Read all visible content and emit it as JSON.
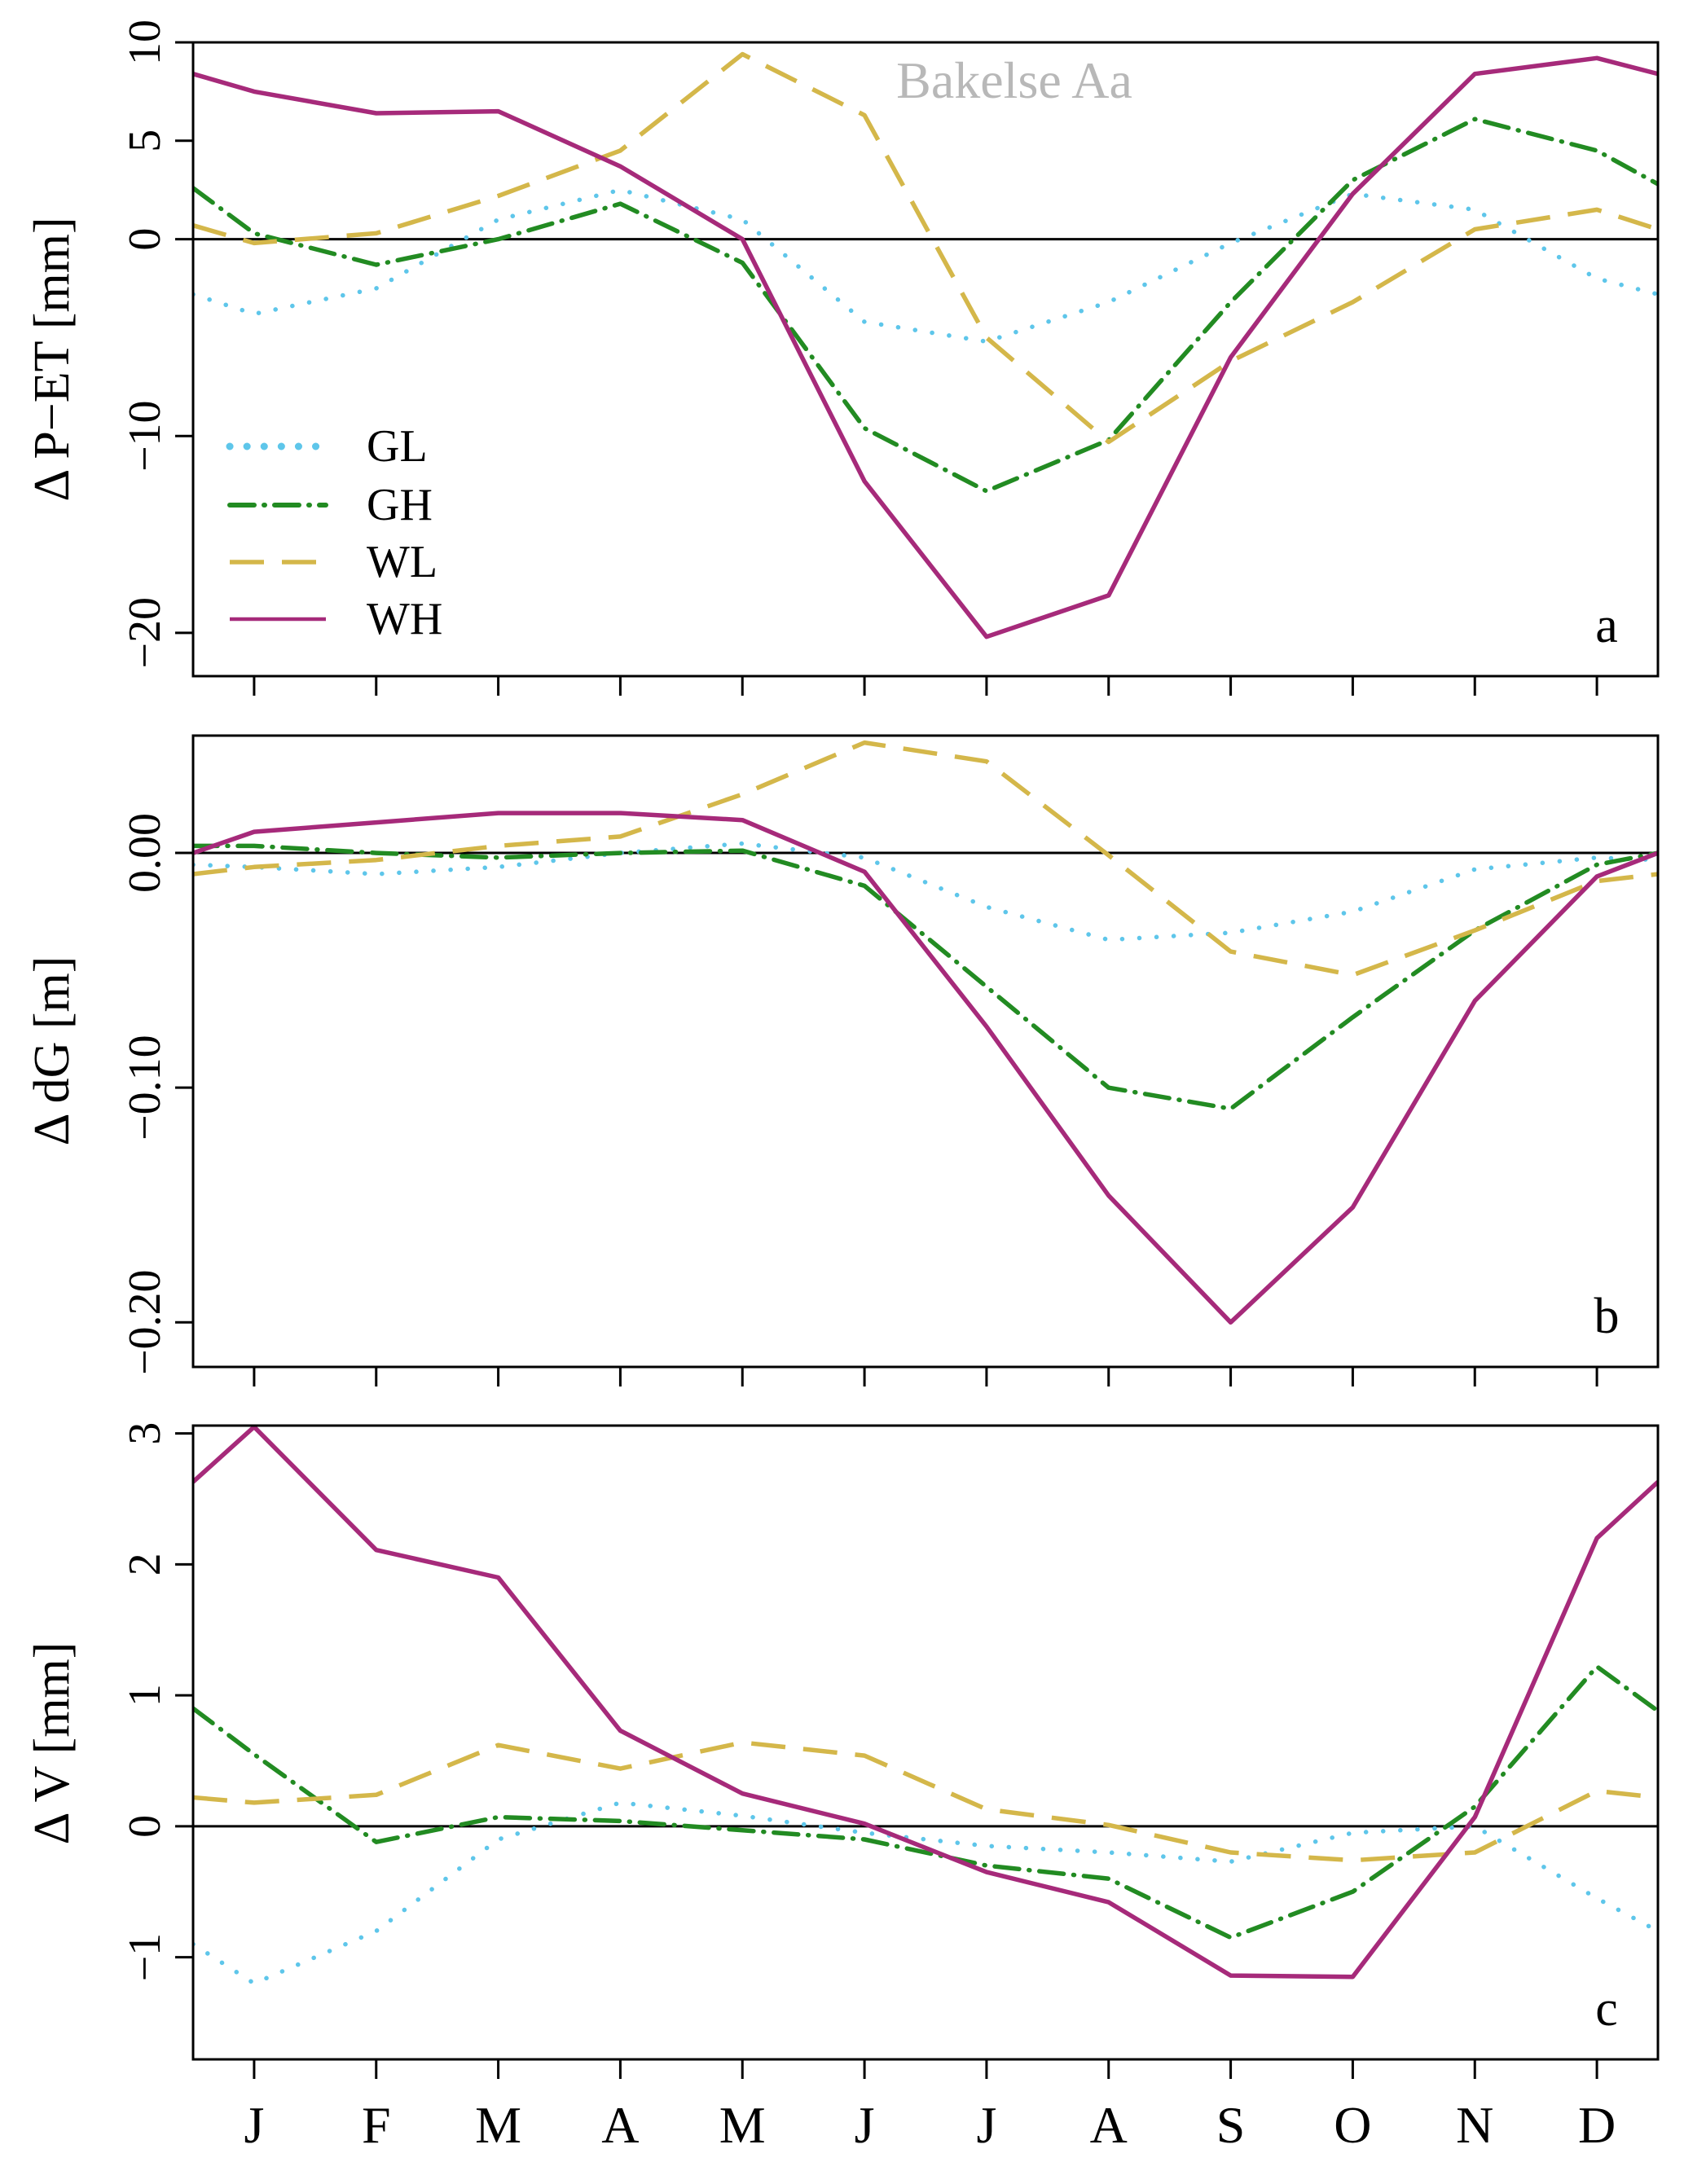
{
  "chart_data": [
    {
      "type": "line",
      "panel": "a",
      "title": "Bakelse Aa",
      "ylabel": "Δ P−ET [mm]",
      "ylim": [
        -22.2,
        10
      ],
      "yticks": [
        10,
        5,
        0,
        -10,
        -20
      ],
      "ytick_labels": [
        "10",
        "5",
        "0",
        "−10",
        "−20"
      ],
      "x": [
        0.5,
        1,
        2,
        3,
        4,
        5,
        6,
        7,
        8,
        9,
        10,
        11,
        12,
        12.5
      ],
      "series": [
        {
          "name": "GL",
          "values": [
            -2.8,
            -3.8,
            -2.5,
            1.0,
            2.5,
            1.0,
            -4.2,
            -5.2,
            -3.2,
            -0.2,
            2.3,
            1.5,
            -2.0,
            -2.8
          ]
        },
        {
          "name": "GH",
          "values": [
            2.6,
            0.3,
            -1.3,
            0.0,
            1.8,
            -1.2,
            -9.6,
            -12.8,
            -10.2,
            -3.2,
            3.0,
            6.1,
            4.5,
            2.8
          ]
        },
        {
          "name": "WL",
          "values": [
            0.7,
            -0.2,
            0.3,
            2.2,
            4.5,
            9.4,
            6.3,
            -5.0,
            -10.3,
            -6.2,
            -3.2,
            0.5,
            1.5,
            0.5
          ]
        },
        {
          "name": "WH",
          "values": [
            8.4,
            7.5,
            6.4,
            6.5,
            3.7,
            0.0,
            -12.3,
            -20.2,
            -18.1,
            -6.0,
            2.3,
            8.4,
            9.2,
            8.4
          ]
        }
      ]
    },
    {
      "type": "line",
      "panel": "b",
      "ylabel": "Δ dG [m]",
      "ylim": [
        -0.219,
        0.05
      ],
      "yticks": [
        0.0,
        -0.1,
        -0.2
      ],
      "ytick_labels": [
        "0.00",
        "−0.10",
        "−0.20"
      ],
      "x": [
        0.5,
        1,
        2,
        3,
        4,
        5,
        6,
        7,
        8,
        9,
        10,
        11,
        12,
        12.5
      ],
      "series": [
        {
          "name": "GL",
          "values": [
            -0.005,
            -0.006,
            -0.009,
            -0.006,
            0.0,
            0.004,
            -0.002,
            -0.023,
            -0.037,
            -0.034,
            -0.025,
            -0.007,
            -0.002,
            -0.003
          ]
        },
        {
          "name": "GH",
          "values": [
            0.003,
            0.003,
            0.0,
            -0.002,
            0.0,
            0.001,
            -0.014,
            -0.057,
            -0.1,
            -0.109,
            -0.07,
            -0.033,
            -0.005,
            0.0
          ]
        },
        {
          "name": "WL",
          "values": [
            -0.009,
            -0.006,
            -0.003,
            0.003,
            0.007,
            0.025,
            0.047,
            0.039,
            -0.001,
            -0.042,
            -0.052,
            -0.033,
            -0.012,
            -0.009
          ]
        },
        {
          "name": "WH",
          "values": [
            0.0,
            0.009,
            0.013,
            0.017,
            0.017,
            0.014,
            -0.008,
            -0.074,
            -0.146,
            -0.2,
            -0.151,
            -0.063,
            -0.01,
            0.0
          ]
        }
      ]
    },
    {
      "type": "line",
      "panel": "c",
      "ylabel": "Δ V [mm]",
      "ylim": [
        -1.78,
        3.06
      ],
      "yticks": [
        3,
        2,
        1,
        0,
        -1
      ],
      "ytick_labels": [
        "3",
        "2",
        "1",
        "0",
        "−1"
      ],
      "x": [
        0.5,
        1,
        2,
        3,
        4,
        5,
        6,
        7,
        8,
        9,
        10,
        11,
        12,
        12.5
      ],
      "series": [
        {
          "name": "GL",
          "values": [
            -0.9,
            -1.2,
            -0.8,
            -0.1,
            0.18,
            0.08,
            -0.05,
            -0.15,
            -0.2,
            -0.27,
            -0.05,
            0.0,
            -0.55,
            -0.8
          ]
        },
        {
          "name": "GH",
          "values": [
            0.9,
            0.55,
            -0.12,
            0.07,
            0.04,
            -0.03,
            -0.1,
            -0.3,
            -0.4,
            -0.85,
            -0.5,
            0.15,
            1.22,
            0.88
          ]
        },
        {
          "name": "WL",
          "values": [
            0.22,
            0.18,
            0.24,
            0.62,
            0.44,
            0.64,
            0.54,
            0.13,
            0.01,
            -0.2,
            -0.26,
            -0.2,
            0.27,
            0.22
          ]
        },
        {
          "name": "WH",
          "values": [
            2.63,
            3.05,
            2.11,
            1.9,
            0.73,
            0.25,
            0.02,
            -0.35,
            -0.58,
            -1.14,
            -1.15,
            0.07,
            2.2,
            2.63
          ]
        }
      ]
    }
  ],
  "x_tick_labels": [
    "J",
    "F",
    "M",
    "A",
    "M",
    "J",
    "J",
    "A",
    "S",
    "O",
    "N",
    "D"
  ],
  "legend": [
    {
      "name": "GL",
      "label": "GL",
      "color": "#5ec6ea",
      "style": "dotted"
    },
    {
      "name": "GH",
      "label": "GH",
      "color": "#228b22",
      "style": "dotdash"
    },
    {
      "name": "WL",
      "label": "WL",
      "color": "#d4b74a",
      "style": "dashed"
    },
    {
      "name": "WH",
      "label": "WH",
      "color": "#a62a7a",
      "style": "solid"
    }
  ]
}
